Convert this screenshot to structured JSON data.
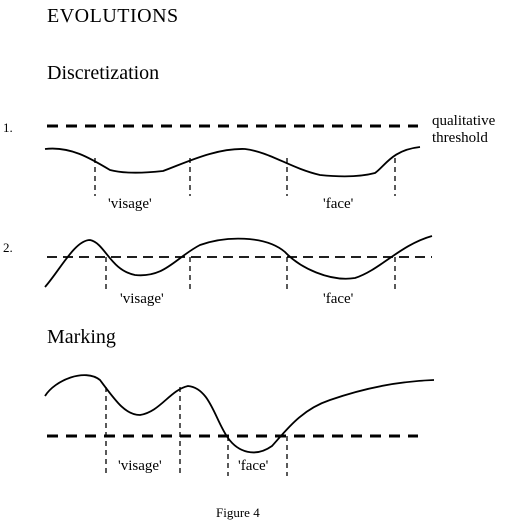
{
  "title": "EVOLUTIONS",
  "section_discretization": "Discretization",
  "section_marking": "Marking",
  "row1_number": "1.",
  "row2_number": "2.",
  "threshold_label_line1": "qualitative",
  "threshold_label_line2": "threshold",
  "row1_label_visage": "'visage'",
  "row1_label_face": "'face'",
  "row2_label_visage": "'visage'",
  "row2_label_face": "'face'",
  "row3_label_visage": "'visage'",
  "row3_label_face": "'face'",
  "caption": "Figure 4"
}
